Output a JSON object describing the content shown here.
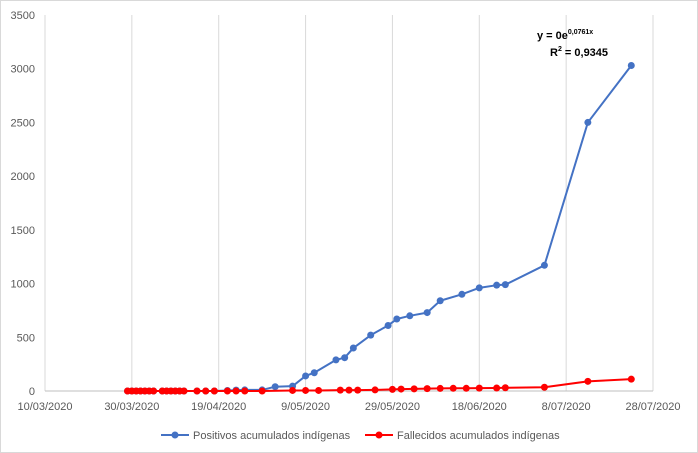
{
  "chart_data": {
    "type": "line",
    "title": "",
    "xlabel": "",
    "ylabel": "",
    "x_axis": {
      "type": "date",
      "range": [
        "2020-03-10",
        "2020-07-28"
      ],
      "tick_labels": [
        "10/03/2020",
        "30/03/2020",
        "19/04/2020",
        "9/05/2020",
        "29/05/2020",
        "18/06/2020",
        "8/07/2020",
        "28/07/2020"
      ],
      "tick_dates": [
        "2020-03-10",
        "2020-03-30",
        "2020-04-19",
        "2020-05-09",
        "2020-05-29",
        "2020-06-18",
        "2020-07-08",
        "2020-07-28"
      ]
    },
    "y_axis": {
      "range": [
        0,
        3500
      ],
      "ticks": [
        0,
        500,
        1000,
        1500,
        2000,
        2500,
        3000,
        3500
      ]
    },
    "grid": {
      "vertical": true,
      "horizontal": false
    },
    "legend_placement": "bottom",
    "series": [
      {
        "name": "Positivos acumulados indígenas",
        "color": "#4472C4",
        "points": [
          [
            "2020-03-29",
            0
          ],
          [
            "2020-03-30",
            0
          ],
          [
            "2020-03-31",
            0
          ],
          [
            "2020-04-01",
            0
          ],
          [
            "2020-04-02",
            0
          ],
          [
            "2020-04-03",
            0
          ],
          [
            "2020-04-04",
            0
          ],
          [
            "2020-04-06",
            0
          ],
          [
            "2020-04-07",
            0
          ],
          [
            "2020-04-08",
            0
          ],
          [
            "2020-04-09",
            0
          ],
          [
            "2020-04-10",
            0
          ],
          [
            "2020-04-11",
            0
          ],
          [
            "2020-04-14",
            0
          ],
          [
            "2020-04-16",
            0
          ],
          [
            "2020-04-18",
            0
          ],
          [
            "2020-04-21",
            5
          ],
          [
            "2020-04-23",
            8
          ],
          [
            "2020-04-25",
            10
          ],
          [
            "2020-04-29",
            10
          ],
          [
            "2020-05-02",
            40
          ],
          [
            "2020-05-06",
            45
          ],
          [
            "2020-05-09",
            140
          ],
          [
            "2020-05-11",
            170
          ],
          [
            "2020-05-16",
            290
          ],
          [
            "2020-05-18",
            310
          ],
          [
            "2020-05-20",
            400
          ],
          [
            "2020-05-24",
            520
          ],
          [
            "2020-05-28",
            610
          ],
          [
            "2020-05-30",
            670
          ],
          [
            "2020-06-02",
            700
          ],
          [
            "2020-06-06",
            730
          ],
          [
            "2020-06-09",
            840
          ],
          [
            "2020-06-14",
            900
          ],
          [
            "2020-06-18",
            960
          ],
          [
            "2020-06-22",
            985
          ],
          [
            "2020-06-24",
            990
          ],
          [
            "2020-07-03",
            1170
          ],
          [
            "2020-07-13",
            2500
          ],
          [
            "2020-07-23",
            3030
          ]
        ]
      },
      {
        "name": "Fallecidos acumulados indígenas",
        "color": "#FF0000",
        "points": [
          [
            "2020-03-29",
            0
          ],
          [
            "2020-03-30",
            0
          ],
          [
            "2020-03-31",
            0
          ],
          [
            "2020-04-01",
            0
          ],
          [
            "2020-04-02",
            0
          ],
          [
            "2020-04-03",
            0
          ],
          [
            "2020-04-04",
            0
          ],
          [
            "2020-04-06",
            0
          ],
          [
            "2020-04-07",
            0
          ],
          [
            "2020-04-08",
            0
          ],
          [
            "2020-04-09",
            0
          ],
          [
            "2020-04-10",
            0
          ],
          [
            "2020-04-11",
            0
          ],
          [
            "2020-04-14",
            0
          ],
          [
            "2020-04-16",
            0
          ],
          [
            "2020-04-18",
            0
          ],
          [
            "2020-04-21",
            0
          ],
          [
            "2020-04-23",
            0
          ],
          [
            "2020-04-25",
            0
          ],
          [
            "2020-04-29",
            0
          ],
          [
            "2020-05-06",
            5
          ],
          [
            "2020-05-09",
            5
          ],
          [
            "2020-05-12",
            5
          ],
          [
            "2020-05-17",
            8
          ],
          [
            "2020-05-19",
            8
          ],
          [
            "2020-05-21",
            8
          ],
          [
            "2020-05-25",
            10
          ],
          [
            "2020-05-29",
            15
          ],
          [
            "2020-05-31",
            18
          ],
          [
            "2020-06-03",
            20
          ],
          [
            "2020-06-06",
            22
          ],
          [
            "2020-06-09",
            24
          ],
          [
            "2020-06-12",
            25
          ],
          [
            "2020-06-15",
            25
          ],
          [
            "2020-06-18",
            27
          ],
          [
            "2020-06-22",
            28
          ],
          [
            "2020-06-24",
            30
          ],
          [
            "2020-07-03",
            35
          ],
          [
            "2020-07-13",
            90
          ],
          [
            "2020-07-23",
            110
          ]
        ]
      }
    ],
    "annotation": {
      "equation_prefix": "y = 0e",
      "equation_exponent": "0,0761x",
      "r2_prefix": "R",
      "r2_exponent": "2",
      "r2_value": " = 0,9345"
    }
  }
}
